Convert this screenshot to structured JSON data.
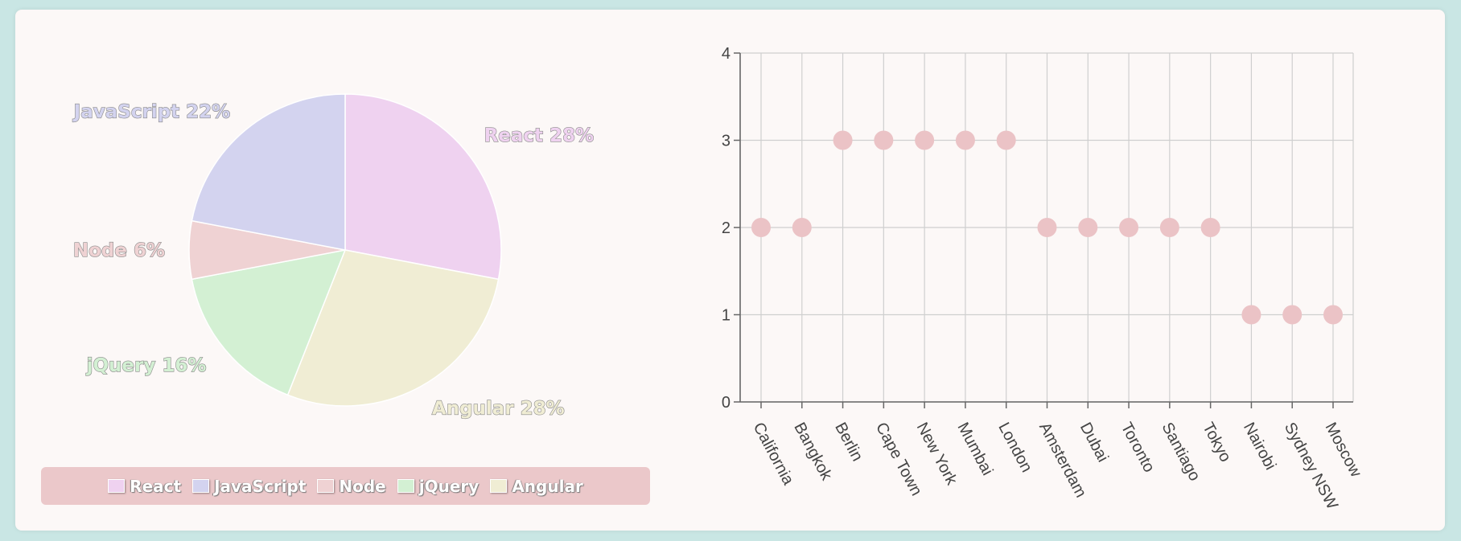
{
  "chart_data": [
    {
      "type": "pie",
      "slices": [
        {
          "name": "React",
          "value": 28,
          "label": "React 28%",
          "color": "#efd2f0"
        },
        {
          "name": "Angular",
          "value": 28,
          "label": "Angular 28%",
          "color": "#f0edd4"
        },
        {
          "name": "jQuery",
          "value": 16,
          "label": "jQuery 16%",
          "color": "#d3f0d3"
        },
        {
          "name": "Node",
          "value": 6,
          "label": "Node 6%",
          "color": "#efd2d3"
        },
        {
          "name": "JavaScript",
          "value": 22,
          "label": "JavaScript 22%",
          "color": "#d3d3ef"
        }
      ],
      "legend": {
        "placement": "bottom",
        "items": [
          {
            "label": "React",
            "color": "#efd2f0"
          },
          {
            "label": "JavaScript",
            "color": "#d3d3ef"
          },
          {
            "label": "Node",
            "color": "#efd2d3"
          },
          {
            "label": "jQuery",
            "color": "#d3f0d3"
          },
          {
            "label": "Angular",
            "color": "#f0edd4"
          }
        ]
      }
    },
    {
      "type": "scatter",
      "categories": [
        "California",
        "Bangkok",
        "Berlin",
        "Cape Town",
        "New York",
        "Mumbai",
        "London",
        "Amsterdam",
        "Dubai",
        "Toronto",
        "Santiago",
        "Tokyo",
        "Nairobi",
        "Sydney NSW",
        "Moscow"
      ],
      "values": [
        2,
        2,
        3,
        3,
        3,
        3,
        3,
        2,
        2,
        2,
        2,
        2,
        1,
        1,
        1
      ],
      "ylim": [
        0,
        4
      ],
      "yticks": [
        "0",
        "1",
        "2",
        "3",
        "4"
      ],
      "grid": true,
      "point_color": "#ebc3c6"
    }
  ]
}
